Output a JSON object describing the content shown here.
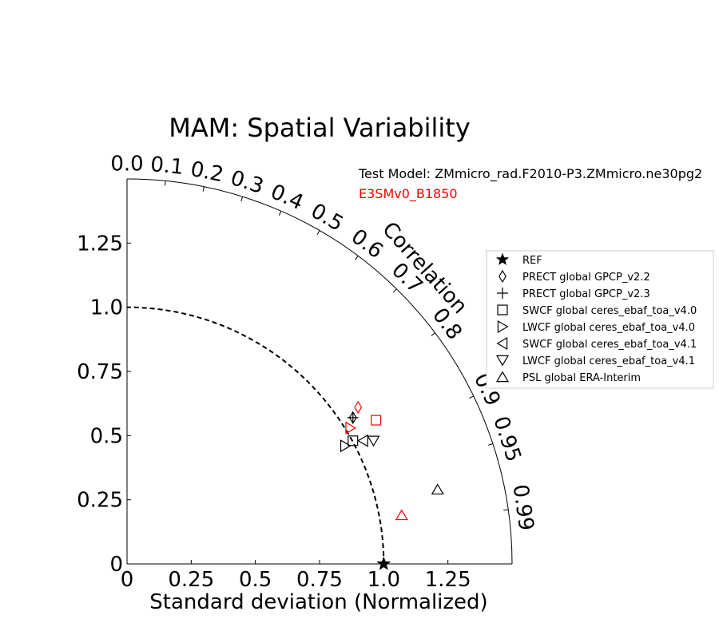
{
  "chart_data": {
    "type": "scatter",
    "subtype": "taylor-diagram",
    "title": "MAM: Spatial Variability",
    "xlabel": "Standard deviation (Normalized)",
    "correlation_label": "Correlation",
    "std_max": 1.5,
    "reference_std": 1.0,
    "std_ticks": [
      0,
      0.25,
      0.5,
      0.75,
      1.0,
      1.25
    ],
    "std_tick_labels": [
      "0",
      "0.25",
      "0.5",
      "0.75",
      "1.0",
      "1.25"
    ],
    "correlation_ticks": [
      0.0,
      0.1,
      0.2,
      0.3,
      0.4,
      0.5,
      0.6,
      0.7,
      0.8,
      0.9,
      0.95,
      0.99
    ],
    "correlation_tick_labels": [
      "0.0",
      "0.1",
      "0.2",
      "0.3",
      "0.4",
      "0.5",
      "0.6",
      "0.7",
      "0.8",
      "0.9",
      "0.95",
      "0.99"
    ],
    "test_model": "Test Model: ZMmicro_rad.F2010-P3.ZMmicro.ne30pg2",
    "reference_model": "E3SMv0_B1850",
    "legend_position": "right",
    "legend": [
      {
        "label": "REF",
        "marker": "star"
      },
      {
        "label": "PRECT global GPCP_v2.2",
        "marker": "diamond"
      },
      {
        "label": "PRECT global GPCP_v2.3",
        "marker": "plus"
      },
      {
        "label": "SWCF global ceres_ebaf_toa_v4.0",
        "marker": "square"
      },
      {
        "label": "LWCF global ceres_ebaf_toa_v4.0",
        "marker": "triangle-right"
      },
      {
        "label": "SWCF global ceres_ebaf_toa_v4.1",
        "marker": "triangle-left"
      },
      {
        "label": "LWCF global ceres_ebaf_toa_v4.1",
        "marker": "triangle-down"
      },
      {
        "label": "PSL global ERA-Interim",
        "marker": "triangle-up"
      }
    ],
    "series": [
      {
        "name": "ZMmicro_rad.F2010-P3.ZMmicro.ne30pg2",
        "color": "#000000",
        "points": [
          {
            "marker": "diamond",
            "x": 0.88,
            "y": 0.57
          },
          {
            "marker": "plus",
            "x": 0.88,
            "y": 0.57
          },
          {
            "marker": "square",
            "x": 0.88,
            "y": 0.48
          },
          {
            "marker": "triangle-right",
            "x": 0.85,
            "y": 0.46
          },
          {
            "marker": "triangle-left",
            "x": 0.92,
            "y": 0.48
          },
          {
            "marker": "triangle-down",
            "x": 0.96,
            "y": 0.48
          },
          {
            "marker": "triangle-up",
            "x": 1.21,
            "y": 0.29
          }
        ]
      },
      {
        "name": "E3SMv0_B1850",
        "color": "#ff0000",
        "points": [
          {
            "marker": "diamond",
            "x": 0.9,
            "y": 0.61
          },
          {
            "marker": "square",
            "x": 0.97,
            "y": 0.56
          },
          {
            "marker": "triangle-right",
            "x": 0.87,
            "y": 0.53
          },
          {
            "marker": "triangle-up",
            "x": 1.07,
            "y": 0.19
          }
        ]
      }
    ],
    "reference_point": {
      "marker": "star",
      "x": 1.0,
      "y": 0.0,
      "color": "#000000"
    }
  }
}
